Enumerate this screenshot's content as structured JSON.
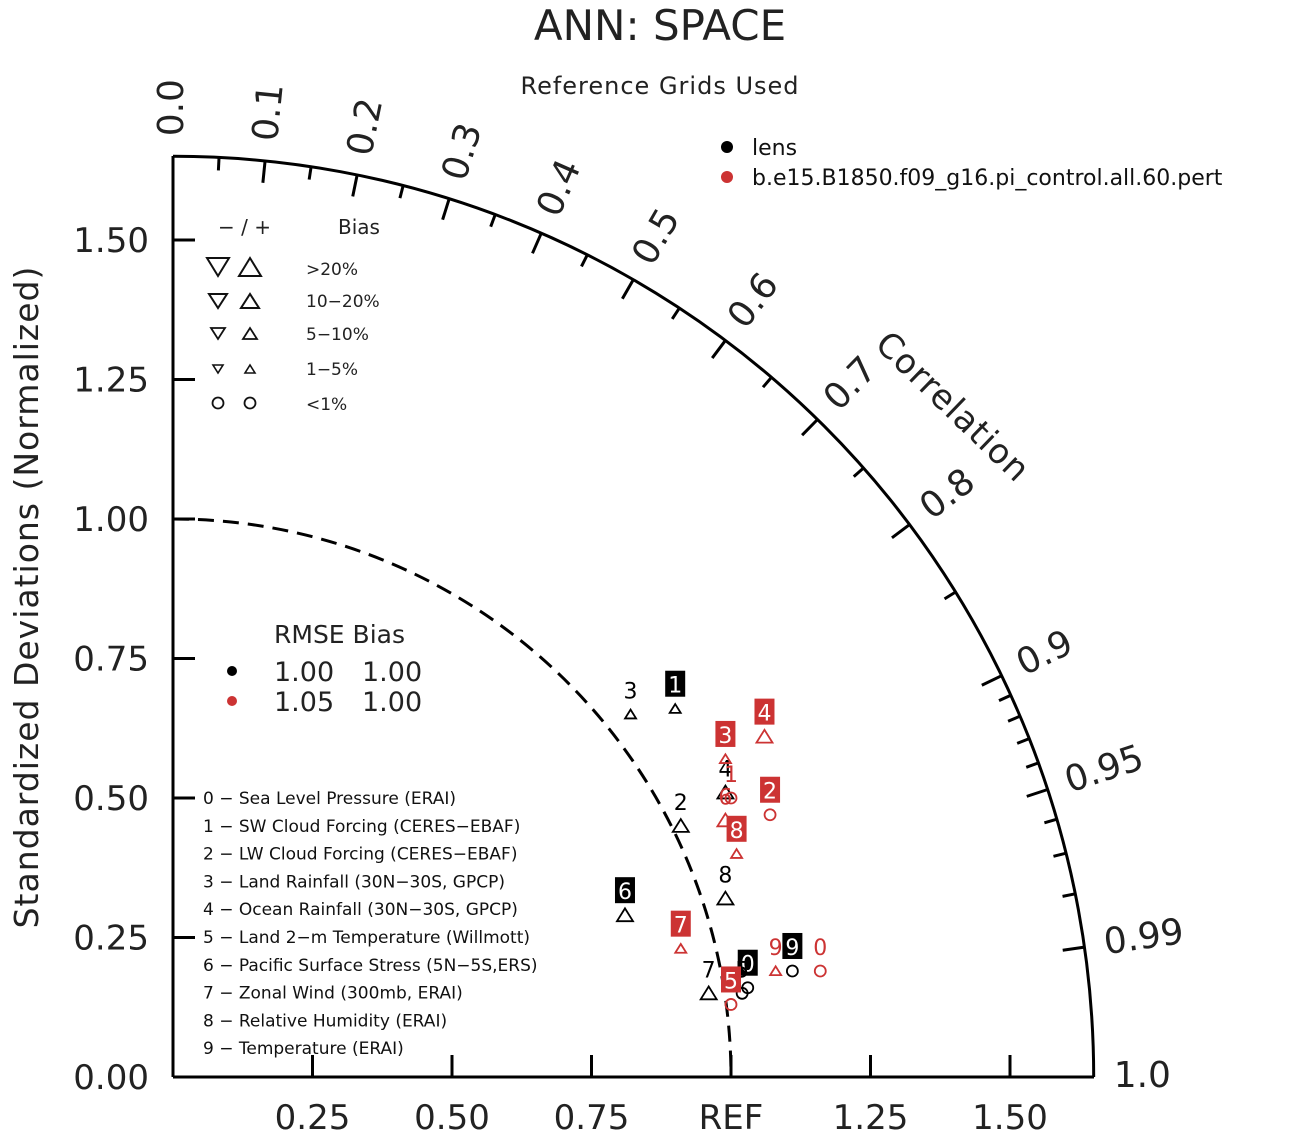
{
  "chart_data": {
    "type": "taylor-diagram",
    "title": "ANN: SPACE",
    "subtitle": "Reference Grids Used",
    "ylabel": "Standardized Deviations (Normalized)",
    "arc_label": "Correlation",
    "ref_label": "REF",
    "std_max": 1.65,
    "y_ticks": [
      "0.00",
      "0.25",
      "0.50",
      "0.75",
      "1.00",
      "1.25",
      "1.50"
    ],
    "x_ticks": [
      "0.25",
      "0.50",
      "0.75",
      "REF",
      "1.25",
      "1.50"
    ],
    "corr_ticks": [
      "0.0",
      "0.1",
      "0.2",
      "0.3",
      "0.4",
      "0.5",
      "0.6",
      "0.7",
      "0.8",
      "0.9",
      "0.95",
      "0.99",
      "1.0"
    ],
    "legend_cases": [
      {
        "label": "lens",
        "color": "#000000"
      },
      {
        "label": "b.e15.B1850.f09_g16.pi_control.all.60.pert",
        "color": "#cc3333"
      }
    ],
    "bias_legend": {
      "header_sign": "− / +",
      "header_label": "Bias",
      "rows": [
        "&gt;20%",
        "10−20%",
        "5−10%",
        "1−5%",
        "&lt;1%"
      ]
    },
    "rmse_table": {
      "header": "RMSE Bias",
      "rows": [
        {
          "rmse": "1.00",
          "bias": "1.00",
          "color": "#000000"
        },
        {
          "rmse": "1.05",
          "bias": "1.00",
          "color": "#cc3333"
        }
      ]
    },
    "variables": [
      "0 − Sea Level Pressure (ERAI)",
      "1 − SW Cloud Forcing (CERES−EBAF)",
      "2 − LW Cloud Forcing (CERES−EBAF)",
      "3 − Land Rainfall (30N−30S, GPCP)",
      "4 − Ocean Rainfall (30N−30S, GPCP)",
      "5 − Land 2−m Temperature (Willmott)",
      "6 − Pacific Surface Stress (5N−5S,ERS)",
      "7 − Zonal Wind (300mb, ERAI)",
      "8 − Relative Humidity (ERAI)",
      "9 − Temperature (ERAI)"
    ],
    "series": [
      {
        "name": "lens",
        "color": "#000000",
        "points": [
          {
            "label": "0",
            "x": 1.03,
            "y": 0.16,
            "marker": "circle",
            "boxed": true
          },
          {
            "label": "1",
            "x": 0.9,
            "y": 0.66,
            "marker": "tri-up-small",
            "boxed": true
          },
          {
            "label": "2",
            "x": 0.91,
            "y": 0.45,
            "marker": "tri-up",
            "boxed": false
          },
          {
            "label": "3",
            "x": 0.82,
            "y": 0.65,
            "marker": "tri-up-small",
            "boxed": false
          },
          {
            "label": "4",
            "x": 0.99,
            "y": 0.51,
            "marker": "tri-up",
            "boxed": false
          },
          {
            "label": "5",
            "x": 1.02,
            "y": 0.15,
            "marker": "circle",
            "boxed": false
          },
          {
            "label": "6",
            "x": 0.81,
            "y": 0.29,
            "marker": "tri-up",
            "boxed": true
          },
          {
            "label": "7",
            "x": 0.96,
            "y": 0.15,
            "marker": "tri-up",
            "boxed": false
          },
          {
            "label": "8",
            "x": 0.99,
            "y": 0.32,
            "marker": "tri-up",
            "boxed": false
          },
          {
            "label": "9",
            "x": 1.11,
            "y": 0.19,
            "marker": "circle",
            "boxed": true
          }
        ]
      },
      {
        "name": "b.e15.B1850.f09_g16.pi_control.all.60.pert",
        "color": "#cc3333",
        "points": [
          {
            "label": "0",
            "x": 1.16,
            "y": 0.19,
            "marker": "circle",
            "boxed": false
          },
          {
            "label": "1",
            "x": 1.0,
            "y": 0.5,
            "marker": "circle",
            "boxed": false
          },
          {
            "label": "2",
            "x": 1.07,
            "y": 0.47,
            "marker": "circle",
            "boxed": true
          },
          {
            "label": "3",
            "x": 0.99,
            "y": 0.57,
            "marker": "tri-up-small",
            "boxed": true
          },
          {
            "label": "4",
            "x": 1.06,
            "y": 0.61,
            "marker": "tri-up",
            "boxed": true
          },
          {
            "label": "5",
            "x": 1.0,
            "y": 0.13,
            "marker": "circle",
            "boxed": true
          },
          {
            "label": "6",
            "x": 0.99,
            "y": 0.46,
            "marker": "tri-up",
            "boxed": false
          },
          {
            "label": "7",
            "x": 0.91,
            "y": 0.23,
            "marker": "tri-up-small",
            "boxed": true
          },
          {
            "label": "8",
            "x": 1.01,
            "y": 0.4,
            "marker": "tri-up-small",
            "boxed": true
          },
          {
            "label": "9",
            "x": 1.08,
            "y": 0.19,
            "marker": "tri-up-small",
            "boxed": false
          }
        ]
      }
    ]
  }
}
